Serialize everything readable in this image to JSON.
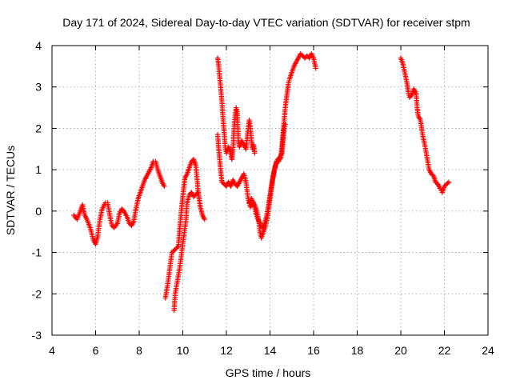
{
  "chart_data": {
    "type": "scatter",
    "title": "Day 171 of 2024, Sidereal Day-to-day VTEC variation (SDTVAR) for receiver stpm",
    "xlabel": "GPS time / hours",
    "ylabel": "SDTVAR / TECUs",
    "xlim": [
      4,
      24
    ],
    "ylim": [
      -3,
      4
    ],
    "xticks": [
      "4",
      "6",
      "8",
      "10",
      "12",
      "14",
      "16",
      "18",
      "20",
      "22",
      "24"
    ],
    "yticks": [
      "-3",
      "-2",
      "-1",
      "0",
      "1",
      "2",
      "3",
      "4"
    ],
    "grid": true,
    "marker": "plus",
    "series": [
      {
        "name": "stpm",
        "color": "#ff0000",
        "segments": [
          [
            [
              5.0,
              -0.1
            ],
            [
              5.15,
              -0.2
            ],
            [
              5.3,
              0.0
            ],
            [
              5.4,
              0.15
            ],
            [
              5.5,
              -0.1
            ],
            [
              5.6,
              -0.2
            ],
            [
              5.75,
              -0.4
            ],
            [
              5.9,
              -0.7
            ],
            [
              6.0,
              -0.8
            ],
            [
              6.1,
              -0.6
            ],
            [
              6.2,
              -0.2
            ],
            [
              6.3,
              0.05
            ],
            [
              6.45,
              0.2
            ],
            [
              6.55,
              0.2
            ],
            [
              6.65,
              -0.1
            ],
            [
              6.75,
              -0.35
            ],
            [
              6.85,
              -0.4
            ],
            [
              7.0,
              -0.3
            ],
            [
              7.1,
              -0.05
            ],
            [
              7.2,
              0.05
            ],
            [
              7.3,
              0.0
            ],
            [
              7.45,
              -0.15
            ],
            [
              7.55,
              -0.3
            ],
            [
              7.65,
              -0.35
            ],
            [
              7.75,
              -0.25
            ],
            [
              7.85,
              0.05
            ],
            [
              7.95,
              0.3
            ],
            [
              8.05,
              0.45
            ],
            [
              8.15,
              0.6
            ],
            [
              8.25,
              0.75
            ],
            [
              8.35,
              0.85
            ],
            [
              8.45,
              0.95
            ],
            [
              8.55,
              1.05
            ],
            [
              8.65,
              1.2
            ],
            [
              8.75,
              1.2
            ],
            [
              8.85,
              1.0
            ],
            [
              8.95,
              0.85
            ],
            [
              9.05,
              0.7
            ],
            [
              9.15,
              0.6
            ]
          ],
          [
            [
              9.2,
              -2.1
            ],
            [
              9.3,
              -1.8
            ],
            [
              9.4,
              -1.4
            ],
            [
              9.5,
              -1.0
            ],
            [
              9.6,
              -0.95
            ],
            [
              9.7,
              -0.9
            ],
            [
              9.8,
              -0.85
            ],
            [
              9.85,
              -0.5
            ],
            [
              9.9,
              -0.2
            ],
            [
              9.95,
              0.1
            ],
            [
              10.0,
              0.35
            ],
            [
              10.05,
              0.6
            ],
            [
              10.1,
              0.8
            ],
            [
              10.2,
              0.9
            ],
            [
              10.3,
              1.05
            ],
            [
              10.4,
              1.2
            ],
            [
              10.5,
              1.25
            ],
            [
              10.6,
              1.1
            ],
            [
              10.65,
              0.8
            ],
            [
              10.7,
              0.5
            ],
            [
              10.75,
              0.3
            ],
            [
              10.8,
              0.1
            ],
            [
              10.9,
              -0.1
            ],
            [
              11.0,
              -0.2
            ]
          ],
          [
            [
              9.6,
              -2.4
            ],
            [
              9.65,
              -2.0
            ],
            [
              9.75,
              -1.7
            ],
            [
              9.85,
              -1.4
            ],
            [
              9.95,
              -1.0
            ],
            [
              10.05,
              -0.6
            ],
            [
              10.15,
              -0.2
            ],
            [
              10.2,
              0.2
            ],
            [
              10.3,
              0.4
            ],
            [
              10.4,
              0.45
            ],
            [
              10.5,
              0.35
            ],
            [
              10.6,
              0.4
            ],
            [
              10.7,
              0.45
            ]
          ],
          [
            [
              11.6,
              3.7
            ],
            [
              11.65,
              3.5
            ],
            [
              11.7,
              3.2
            ],
            [
              11.75,
              2.9
            ],
            [
              11.8,
              2.6
            ],
            [
              11.85,
              2.2
            ],
            [
              11.9,
              1.9
            ],
            [
              11.95,
              1.5
            ],
            [
              12.0,
              1.4
            ],
            [
              12.1,
              1.55
            ],
            [
              12.2,
              1.4
            ],
            [
              12.25,
              1.25
            ],
            [
              12.3,
              1.45
            ],
            [
              12.35,
              2.0
            ],
            [
              12.4,
              2.3
            ],
            [
              12.45,
              2.5
            ],
            [
              12.5,
              2.4
            ],
            [
              12.55,
              1.7
            ],
            [
              12.6,
              1.55
            ],
            [
              12.7,
              1.7
            ],
            [
              12.8,
              1.6
            ],
            [
              12.9,
              1.5
            ],
            [
              13.0,
              2.0
            ],
            [
              13.05,
              2.2
            ],
            [
              13.1,
              2.0
            ],
            [
              13.15,
              1.7
            ],
            [
              13.2,
              1.5
            ],
            [
              13.25,
              1.6
            ],
            [
              13.3,
              1.4
            ]
          ],
          [
            [
              11.6,
              1.85
            ],
            [
              11.65,
              1.5
            ],
            [
              11.7,
              1.2
            ],
            [
              11.75,
              0.9
            ],
            [
              11.8,
              0.7
            ],
            [
              11.9,
              0.65
            ],
            [
              12.0,
              0.6
            ],
            [
              12.1,
              0.7
            ],
            [
              12.2,
              0.6
            ],
            [
              12.3,
              0.75
            ],
            [
              12.4,
              0.65
            ],
            [
              12.5,
              0.6
            ],
            [
              12.6,
              0.7
            ],
            [
              12.7,
              0.8
            ],
            [
              12.8,
              0.9
            ],
            [
              12.9,
              0.7
            ],
            [
              13.0,
              0.3
            ],
            [
              13.1,
              0.1
            ],
            [
              13.2,
              0.2
            ],
            [
              13.3,
              0.15
            ],
            [
              13.4,
              0.0
            ],
            [
              13.5,
              -0.3
            ],
            [
              13.55,
              -0.55
            ],
            [
              13.6,
              -0.65
            ],
            [
              13.7,
              -0.5
            ],
            [
              13.8,
              -0.35
            ],
            [
              13.9,
              -0.1
            ],
            [
              14.0,
              0.3
            ],
            [
              14.1,
              0.7
            ],
            [
              14.2,
              1.0
            ],
            [
              14.3,
              1.2
            ],
            [
              14.4,
              1.2
            ],
            [
              14.5,
              1.3
            ],
            [
              14.55,
              1.6
            ],
            [
              14.6,
              1.9
            ],
            [
              14.65,
              2.2
            ],
            [
              14.7,
              2.5
            ],
            [
              14.75,
              2.7
            ],
            [
              14.8,
              2.9
            ],
            [
              14.85,
              3.1
            ],
            [
              14.9,
              3.2
            ],
            [
              15.0,
              3.35
            ],
            [
              15.1,
              3.5
            ],
            [
              15.2,
              3.6
            ],
            [
              15.3,
              3.7
            ],
            [
              15.4,
              3.8
            ],
            [
              15.5,
              3.75
            ],
            [
              15.6,
              3.7
            ],
            [
              15.7,
              3.75
            ],
            [
              15.8,
              3.7
            ],
            [
              15.9,
              3.8
            ],
            [
              16.0,
              3.7
            ],
            [
              16.1,
              3.45
            ]
          ],
          [
            [
              13.05,
              0.2
            ],
            [
              13.15,
              0.3
            ],
            [
              13.25,
              0.2
            ],
            [
              13.35,
              -0.05
            ],
            [
              13.45,
              -0.2
            ],
            [
              13.55,
              -0.3
            ],
            [
              13.65,
              -0.4
            ],
            [
              13.75,
              -0.3
            ],
            [
              13.85,
              -0.1
            ],
            [
              13.95,
              0.2
            ],
            [
              14.05,
              0.55
            ],
            [
              14.15,
              0.85
            ],
            [
              14.25,
              1.1
            ],
            [
              14.35,
              1.25
            ],
            [
              14.45,
              1.3
            ],
            [
              14.55,
              1.4
            ],
            [
              14.6,
              1.7
            ],
            [
              14.65,
              2.0
            ],
            [
              14.7,
              2.1
            ]
          ],
          [
            [
              20.0,
              3.7
            ],
            [
              20.1,
              3.55
            ],
            [
              20.2,
              3.3
            ],
            [
              20.3,
              3.05
            ],
            [
              20.35,
              2.85
            ],
            [
              20.4,
              2.75
            ],
            [
              20.5,
              2.8
            ],
            [
              20.6,
              2.95
            ],
            [
              20.7,
              2.85
            ],
            [
              20.75,
              2.5
            ],
            [
              20.8,
              2.3
            ],
            [
              20.9,
              2.2
            ],
            [
              21.0,
              1.85
            ],
            [
              21.1,
              1.6
            ],
            [
              21.2,
              1.3
            ],
            [
              21.3,
              1.0
            ],
            [
              21.4,
              0.9
            ],
            [
              21.5,
              0.85
            ],
            [
              21.6,
              0.7
            ],
            [
              21.7,
              0.65
            ],
            [
              21.8,
              0.55
            ],
            [
              21.85,
              0.5
            ],
            [
              21.9,
              0.45
            ],
            [
              22.0,
              0.6
            ],
            [
              22.1,
              0.65
            ],
            [
              22.2,
              0.7
            ]
          ]
        ]
      }
    ]
  }
}
